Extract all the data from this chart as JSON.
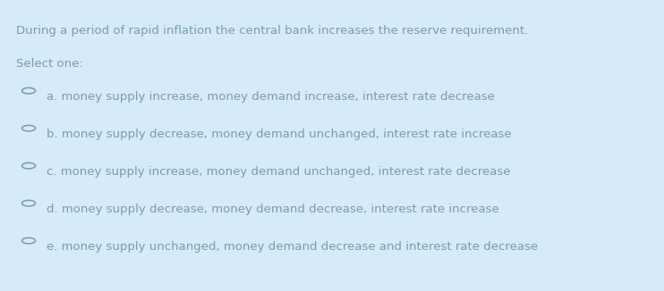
{
  "background_color": "#d6eaf8",
  "question": "During a period of rapid inflation the central bank increases the reserve requirement.",
  "select_label": "Select one:",
  "options": [
    "a. money supply increase, money demand increase, interest rate decrease",
    "b. money supply decrease, money demand unchanged, interest rate increase",
    "c. money supply increase, money demand unchanged, interest rate decrease",
    "d. money supply decrease, money demand decrease, interest rate increase",
    "e. money supply unchanged, money demand decrease and interest rate decrease"
  ],
  "text_color": "#7a9cae",
  "circle_color": "#7a9cae",
  "question_fontsize": 9.5,
  "select_fontsize": 9.5,
  "option_fontsize": 9.5,
  "fig_width": 7.42,
  "fig_height": 3.26,
  "dpi": 100
}
